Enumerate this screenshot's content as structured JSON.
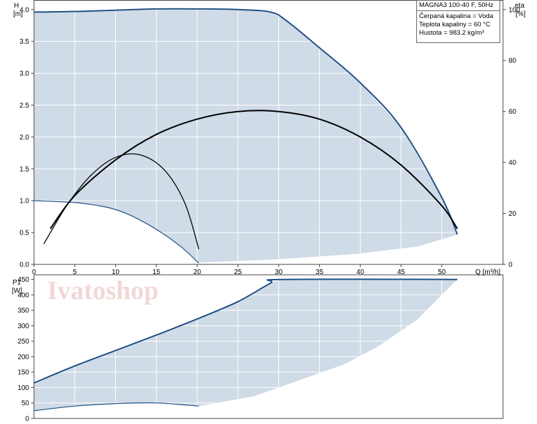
{
  "info": {
    "title": "MAGNA3 100-40 F, 50Hz",
    "line1": "Čerpaná kapalina = Voda",
    "line2": "Teplota kapaliny = 60 °C",
    "line3": "Hustota = 983.2 kg/m³"
  },
  "watermark": "Ivatoshop",
  "colors": {
    "fill": "#cfdbe6",
    "curve": "#1f4e86",
    "eta": "#000000",
    "grid": "#ffffff"
  },
  "chart_data": [
    {
      "type": "area",
      "panel": "head",
      "ylabel_line1": "H",
      "ylabel_line2": "[m]",
      "y2label_line1": "eta",
      "y2label_line2": "[%]",
      "xlabel": "Q [m³/h]",
      "xlim": [
        0,
        57.5
      ],
      "ylim": [
        0,
        4.15
      ],
      "y2lim": [
        0,
        103.75
      ],
      "x_ticks": [
        0,
        5,
        10,
        15,
        20,
        25,
        30,
        35,
        40,
        45,
        50
      ],
      "y_ticks": [
        0.0,
        0.5,
        1.0,
        1.5,
        2.0,
        2.5,
        3.0,
        3.5,
        4.0
      ],
      "y2_ticks": [
        0,
        20,
        40,
        60,
        80,
        100
      ],
      "grid": true,
      "series": [
        {
          "role": "max-curve",
          "x": [
            0,
            5,
            10,
            15,
            20,
            25,
            29,
            31,
            35,
            40,
            45,
            50,
            51.9
          ],
          "y": [
            3.96,
            3.97,
            3.99,
            4.01,
            4.01,
            4.0,
            3.96,
            3.82,
            3.4,
            2.85,
            2.15,
            1.05,
            0.47
          ]
        },
        {
          "role": "min-curve",
          "x": [
            0,
            5,
            8,
            10,
            12,
            15,
            18,
            20.2
          ],
          "y": [
            1.0,
            0.97,
            0.92,
            0.86,
            0.76,
            0.55,
            0.28,
            0.02
          ]
        },
        {
          "role": "min-region-edge",
          "x": [
            20.2,
            30,
            40,
            47,
            52
          ],
          "y": [
            0.03,
            0.08,
            0.17,
            0.28,
            0.47
          ]
        },
        {
          "role": "eta-max",
          "axis": "y2",
          "x": [
            2,
            5,
            10,
            15,
            20,
            25,
            30,
            35,
            40,
            45,
            50,
            51.9
          ],
          "y": [
            14,
            27,
            41,
            51,
            57,
            60,
            60,
            57,
            50,
            39,
            23,
            14
          ]
        },
        {
          "role": "eta-min",
          "axis": "y2",
          "x": [
            1.2,
            4,
            7,
            10,
            13,
            16,
            18.5,
            20.2
          ],
          "y": [
            8,
            23,
            35,
            42,
            43,
            37,
            24,
            6
          ]
        }
      ]
    },
    {
      "type": "area",
      "panel": "power",
      "ylabel_line1": "P1",
      "ylabel_line2": "[W]",
      "xlim": [
        0,
        57.5
      ],
      "ylim": [
        0,
        465
      ],
      "y_ticks": [
        0,
        50,
        100,
        150,
        200,
        250,
        300,
        350,
        400,
        450
      ],
      "grid": true,
      "series": [
        {
          "role": "max-power",
          "x": [
            0,
            5,
            10,
            15,
            20,
            25,
            29,
            30.5,
            51.9
          ],
          "y": [
            115,
            170,
            220,
            270,
            322,
            378,
            438,
            450,
            450
          ]
        },
        {
          "role": "min-power",
          "x": [
            0,
            5,
            10,
            15,
            20.2
          ],
          "y": [
            25,
            40,
            48,
            50,
            40
          ]
        },
        {
          "role": "min-region-edge",
          "x": [
            20.2,
            27,
            30,
            38,
            42,
            47,
            50,
            51.9
          ],
          "y": [
            40,
            72,
            100,
            175,
            230,
            320,
            400,
            450
          ]
        }
      ]
    }
  ]
}
